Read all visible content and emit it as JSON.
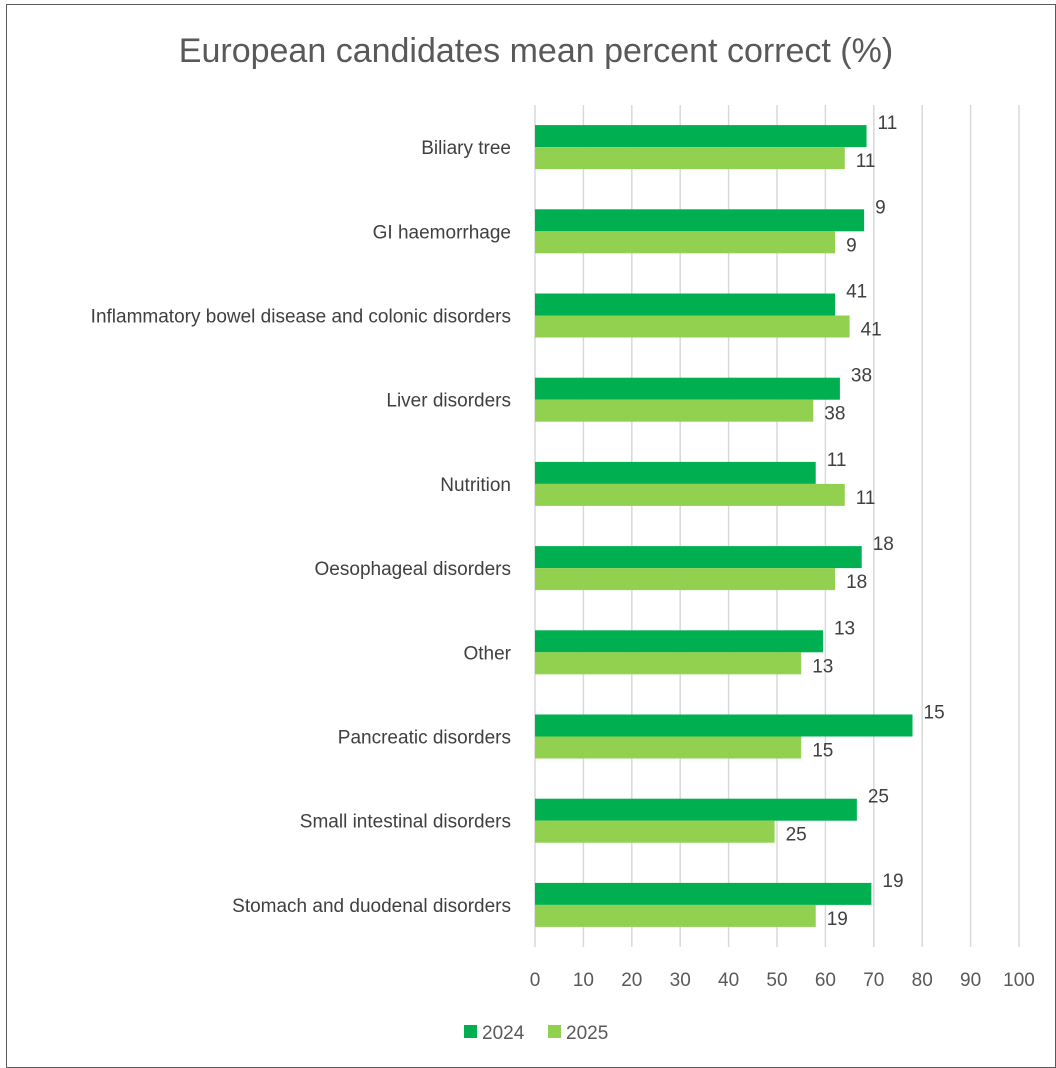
{
  "chart_data": {
    "type": "bar",
    "orientation": "horizontal",
    "title": "European candidates mean percent correct (%)",
    "categories": [
      "Biliary tree",
      "GI haemorrhage",
      "Inflammatory bowel disease and colonic disorders",
      "Liver disorders",
      "Nutrition",
      "Oesophageal disorders",
      "Other",
      "Pancreatic disorders",
      "Small intestinal disorders",
      "Stomach and duodenal disorders"
    ],
    "series": [
      {
        "name": "2024",
        "color": "#00b050",
        "values": [
          68.5,
          68,
          62,
          63,
          58,
          67.5,
          59.5,
          78,
          66.5,
          69.5
        ],
        "data_labels": [
          "11",
          "9",
          "41",
          "38",
          "11",
          "18",
          "13",
          "15",
          "25",
          "19"
        ]
      },
      {
        "name": "2025",
        "color": "#92d050",
        "values": [
          64,
          62,
          65,
          57.5,
          64,
          62,
          55,
          55,
          49.5,
          58
        ],
        "data_labels": [
          "11",
          "9",
          "41",
          "38",
          "11",
          "18",
          "13",
          "15",
          "25",
          "19"
        ]
      }
    ],
    "xlim": [
      0,
      100
    ],
    "xticks": [
      "0",
      "10",
      "20",
      "30",
      "40",
      "50",
      "60",
      "70",
      "80",
      "90",
      "100"
    ],
    "grid": "vertical",
    "legend": "bottom"
  }
}
